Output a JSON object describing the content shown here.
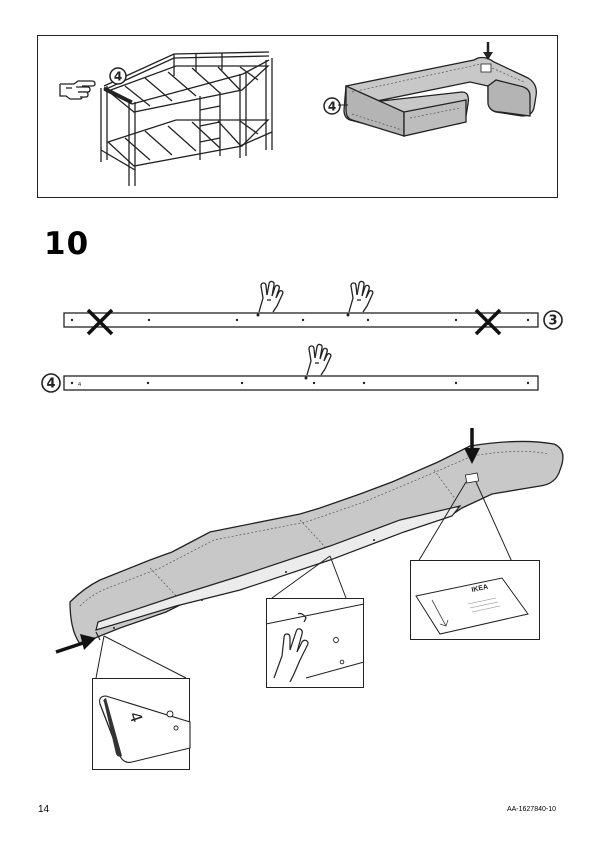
{
  "step": {
    "number": "10"
  },
  "part_labels": {
    "part_3": "3",
    "part_4": "4"
  },
  "detail_labels": {
    "part_number_on_rail": "4",
    "brand_on_tag": "IKEA"
  },
  "footer": {
    "page_number": "14",
    "document_code": "AA-1627840-10"
  },
  "colors": {
    "line": "#222222",
    "fabric_fill": "#c8c8c8",
    "fabric_dark": "#b4b4b4",
    "background": "#ffffff"
  },
  "icons": [
    "pointing-hand-icon",
    "cross-mark-icon",
    "arrow-down-icon",
    "arrow-right-icon",
    "finger-touch-icon"
  ]
}
